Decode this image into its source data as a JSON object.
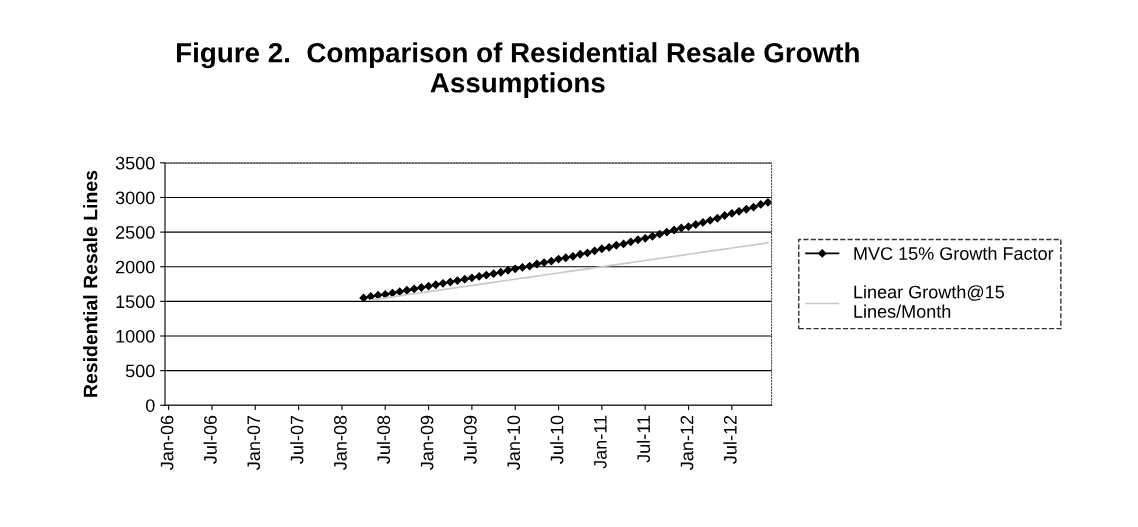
{
  "chart_data": {
    "type": "line",
    "title": "Figure 2.  Comparison of Residential Resale Growth\nAssumptions",
    "ylabel": "Residential Resale Lines",
    "categories": [
      "Jan-06",
      null,
      null,
      null,
      null,
      null,
      "Jul-06",
      null,
      null,
      null,
      null,
      null,
      "Jan-07",
      null,
      null,
      null,
      null,
      null,
      "Jul-07",
      null,
      null,
      null,
      null,
      null,
      "Jan-08",
      null,
      null,
      null,
      null,
      null,
      "Jul-08",
      null,
      null,
      null,
      null,
      null,
      "Jan-09",
      null,
      null,
      null,
      null,
      null,
      "Jul-09",
      null,
      null,
      null,
      null,
      null,
      "Jan-10",
      null,
      null,
      null,
      null,
      null,
      "Jul-10",
      null,
      null,
      null,
      null,
      null,
      "Jan-11",
      null,
      null,
      null,
      null,
      null,
      "Jul-11",
      null,
      null,
      null,
      null,
      null,
      "Jan-12",
      null,
      null,
      null,
      null,
      null,
      "Jul-12",
      null,
      null,
      null,
      null,
      null
    ],
    "series": [
      {
        "name": "MVC 15% Growth Factor",
        "color": "#000000",
        "marker": "diamond",
        "values": [
          null,
          null,
          null,
          null,
          null,
          null,
          null,
          null,
          null,
          null,
          null,
          null,
          null,
          null,
          null,
          null,
          null,
          null,
          null,
          null,
          null,
          null,
          null,
          null,
          null,
          null,
          null,
          1550,
          1570,
          1590,
          1600,
          1620,
          1640,
          1660,
          1680,
          1700,
          1720,
          1740,
          1760,
          1780,
          1800,
          1820,
          1840,
          1860,
          1880,
          1900,
          1920,
          1950,
          1970,
          1990,
          2010,
          2040,
          2060,
          2080,
          2110,
          2130,
          2150,
          2180,
          2200,
          2230,
          2260,
          2280,
          2310,
          2330,
          2360,
          2390,
          2410,
          2440,
          2470,
          2500,
          2530,
          2560,
          2580,
          2610,
          2640,
          2670,
          2700,
          2740,
          2770,
          2800,
          2830,
          2860,
          2900,
          2930
        ]
      },
      {
        "name": "Linear Growth@15\nLines/Month",
        "color": "#c8c8c8",
        "marker": "none",
        "values": [
          null,
          null,
          null,
          null,
          null,
          null,
          null,
          null,
          null,
          null,
          null,
          null,
          null,
          null,
          null,
          null,
          null,
          null,
          null,
          null,
          null,
          null,
          null,
          null,
          null,
          null,
          null,
          null,
          1520,
          1535,
          1550,
          1565,
          1580,
          1595,
          1610,
          1625,
          1640,
          1655,
          1670,
          1685,
          1700,
          1715,
          1730,
          1745,
          1760,
          1775,
          1790,
          1805,
          1820,
          1835,
          1850,
          1865,
          1880,
          1895,
          1910,
          1925,
          1940,
          1955,
          1970,
          1985,
          2000,
          2015,
          2030,
          2045,
          2060,
          2075,
          2090,
          2105,
          2120,
          2135,
          2150,
          2165,
          2180,
          2195,
          2210,
          2225,
          2240,
          2255,
          2270,
          2285,
          2300,
          2315,
          2330,
          2345
        ]
      }
    ],
    "ylim": [
      0,
      3500
    ],
    "yticks": [
      0,
      500,
      1000,
      1500,
      2000,
      2500,
      3000,
      3500
    ],
    "grid": "y",
    "legend": "right",
    "line_style": "solid"
  }
}
